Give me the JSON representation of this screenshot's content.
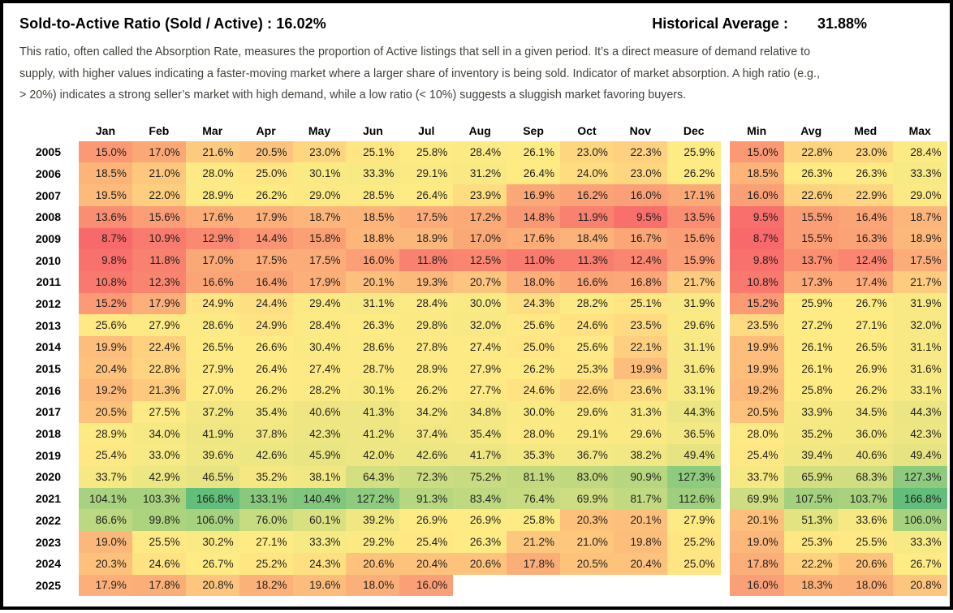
{
  "header": {
    "title": "Sold-to-Active Ratio (Sold / Active) : 16.02%",
    "historical_average_label": "Historical Average :",
    "historical_average_value": "31.88%"
  },
  "description_lines": [
    "This ratio, often called the Absorption Rate, measures the proportion of Active listings that sell in a given period. It’s a direct measure of demand relative to",
    "supply, with higher values indicating a faster-moving market where a larger share of inventory is being sold. Indicator of market absorption. A high ratio (e.g.,",
    "> 20%) indicates a strong seller’s market with high demand, while a low ratio (< 10%) suggests a sluggish market favoring buyers."
  ],
  "chart_data": {
    "type": "heatmap",
    "title": "Sold-to-Active Ratio (Sold / Active) : 16.02%",
    "subtitle": "Historical Average : 31.88%",
    "value_format": "percent-one-decimal",
    "columns": [
      "Jan",
      "Feb",
      "Mar",
      "Apr",
      "May",
      "Jun",
      "Jul",
      "Aug",
      "Sep",
      "Oct",
      "Nov",
      "Dec"
    ],
    "stat_columns": [
      "Min",
      "Avg",
      "Med",
      "Max"
    ],
    "rows": [
      {
        "year": "2005",
        "values": [
          15.0,
          17.0,
          21.6,
          20.5,
          23.0,
          25.1,
          25.8,
          28.4,
          26.1,
          23.0,
          22.3,
          25.9
        ],
        "stats": [
          15.0,
          22.8,
          23.0,
          28.4
        ]
      },
      {
        "year": "2006",
        "values": [
          18.5,
          21.0,
          28.0,
          25.0,
          30.1,
          33.3,
          29.1,
          31.2,
          26.4,
          24.0,
          23.0,
          26.2
        ],
        "stats": [
          18.5,
          26.3,
          26.3,
          33.3
        ]
      },
      {
        "year": "2007",
        "values": [
          19.5,
          22.0,
          28.9,
          26.2,
          29.0,
          28.5,
          26.4,
          23.9,
          16.9,
          16.2,
          16.0,
          17.1
        ],
        "stats": [
          16.0,
          22.6,
          22.9,
          29.0
        ]
      },
      {
        "year": "2008",
        "values": [
          13.6,
          15.6,
          17.6,
          17.9,
          18.7,
          18.5,
          17.5,
          17.2,
          14.8,
          11.9,
          9.5,
          13.5
        ],
        "stats": [
          9.5,
          15.5,
          16.4,
          18.7
        ]
      },
      {
        "year": "2009",
        "values": [
          8.7,
          10.9,
          12.9,
          14.4,
          15.8,
          18.8,
          18.9,
          17.0,
          17.6,
          18.4,
          16.7,
          15.6
        ],
        "stats": [
          8.7,
          15.5,
          16.3,
          18.9
        ]
      },
      {
        "year": "2010",
        "values": [
          9.8,
          11.8,
          17.0,
          17.5,
          17.5,
          16.0,
          11.8,
          12.5,
          11.0,
          11.3,
          12.4,
          15.9
        ],
        "stats": [
          9.8,
          13.7,
          12.4,
          17.5
        ]
      },
      {
        "year": "2011",
        "values": [
          10.8,
          12.3,
          16.6,
          16.4,
          17.9,
          20.1,
          19.3,
          20.7,
          18.0,
          16.6,
          16.8,
          21.7
        ],
        "stats": [
          10.8,
          17.3,
          17.4,
          21.7
        ]
      },
      {
        "year": "2012",
        "values": [
          15.2,
          17.9,
          24.9,
          24.4,
          29.4,
          31.1,
          28.4,
          30.0,
          24.3,
          28.2,
          25.1,
          31.9
        ],
        "stats": [
          15.2,
          25.9,
          26.7,
          31.9
        ]
      },
      {
        "year": "2013",
        "values": [
          25.6,
          27.9,
          28.6,
          24.9,
          28.4,
          26.3,
          29.8,
          32.0,
          25.6,
          24.6,
          23.5,
          29.6
        ],
        "stats": [
          23.5,
          27.2,
          27.1,
          32.0
        ]
      },
      {
        "year": "2014",
        "values": [
          19.9,
          22.4,
          26.5,
          26.6,
          30.4,
          28.6,
          27.8,
          27.4,
          25.0,
          25.6,
          22.1,
          31.1
        ],
        "stats": [
          19.9,
          26.1,
          26.5,
          31.1
        ]
      },
      {
        "year": "2015",
        "values": [
          20.4,
          22.8,
          27.9,
          26.4,
          27.4,
          28.7,
          28.9,
          27.9,
          26.2,
          25.3,
          19.9,
          31.6
        ],
        "stats": [
          19.9,
          26.1,
          26.9,
          31.6
        ]
      },
      {
        "year": "2016",
        "values": [
          19.2,
          21.3,
          27.0,
          26.2,
          28.2,
          30.1,
          26.2,
          27.7,
          24.6,
          22.6,
          23.6,
          33.1
        ],
        "stats": [
          19.2,
          25.8,
          26.2,
          33.1
        ]
      },
      {
        "year": "2017",
        "values": [
          20.5,
          27.5,
          37.2,
          35.4,
          40.6,
          41.3,
          34.2,
          34.8,
          30.0,
          29.6,
          31.3,
          44.3
        ],
        "stats": [
          20.5,
          33.9,
          34.5,
          44.3
        ]
      },
      {
        "year": "2018",
        "values": [
          28.9,
          34.0,
          41.9,
          37.8,
          42.3,
          41.2,
          37.4,
          35.4,
          28.0,
          29.1,
          29.6,
          36.5
        ],
        "stats": [
          28.0,
          35.2,
          36.0,
          42.3
        ]
      },
      {
        "year": "2019",
        "values": [
          25.4,
          33.0,
          39.6,
          42.6,
          45.9,
          42.0,
          42.6,
          41.7,
          35.3,
          36.7,
          38.2,
          49.4
        ],
        "stats": [
          25.4,
          39.4,
          40.6,
          49.4
        ]
      },
      {
        "year": "2020",
        "values": [
          33.7,
          42.9,
          46.5,
          35.2,
          38.1,
          64.3,
          72.3,
          75.2,
          81.1,
          83.0,
          90.9,
          127.3
        ],
        "stats": [
          33.7,
          65.9,
          68.3,
          127.3
        ]
      },
      {
        "year": "2021",
        "values": [
          104.1,
          103.3,
          166.8,
          133.1,
          140.4,
          127.2,
          91.3,
          83.4,
          76.4,
          69.9,
          81.7,
          112.6
        ],
        "stats": [
          69.9,
          107.5,
          103.7,
          166.8
        ]
      },
      {
        "year": "2022",
        "values": [
          86.6,
          99.8,
          106.0,
          76.0,
          60.1,
          39.2,
          26.9,
          26.9,
          25.8,
          20.3,
          20.1,
          27.9
        ],
        "stats": [
          20.1,
          51.3,
          33.6,
          106.0
        ]
      },
      {
        "year": "2023",
        "values": [
          19.0,
          25.5,
          30.2,
          27.1,
          33.3,
          29.2,
          25.4,
          26.3,
          21.2,
          21.0,
          19.8,
          25.2
        ],
        "stats": [
          19.0,
          25.3,
          25.5,
          33.3
        ]
      },
      {
        "year": "2024",
        "values": [
          20.3,
          24.6,
          26.7,
          25.2,
          24.3,
          20.6,
          20.4,
          20.6,
          17.8,
          20.5,
          20.4,
          25.0
        ],
        "stats": [
          17.8,
          22.2,
          20.6,
          26.7
        ]
      },
      {
        "year": "2025",
        "values": [
          17.9,
          17.8,
          20.8,
          18.2,
          19.6,
          18.0,
          16.0,
          null,
          null,
          null,
          null,
          null
        ],
        "stats": [
          16.0,
          18.3,
          18.0,
          20.8
        ]
      }
    ],
    "color_scale": {
      "mode": "min-median-max",
      "min_color": "#F8696B",
      "mid_color": "#FFEB84",
      "max_color": "#63BE7B"
    },
    "legend": "none",
    "grid": false
  }
}
